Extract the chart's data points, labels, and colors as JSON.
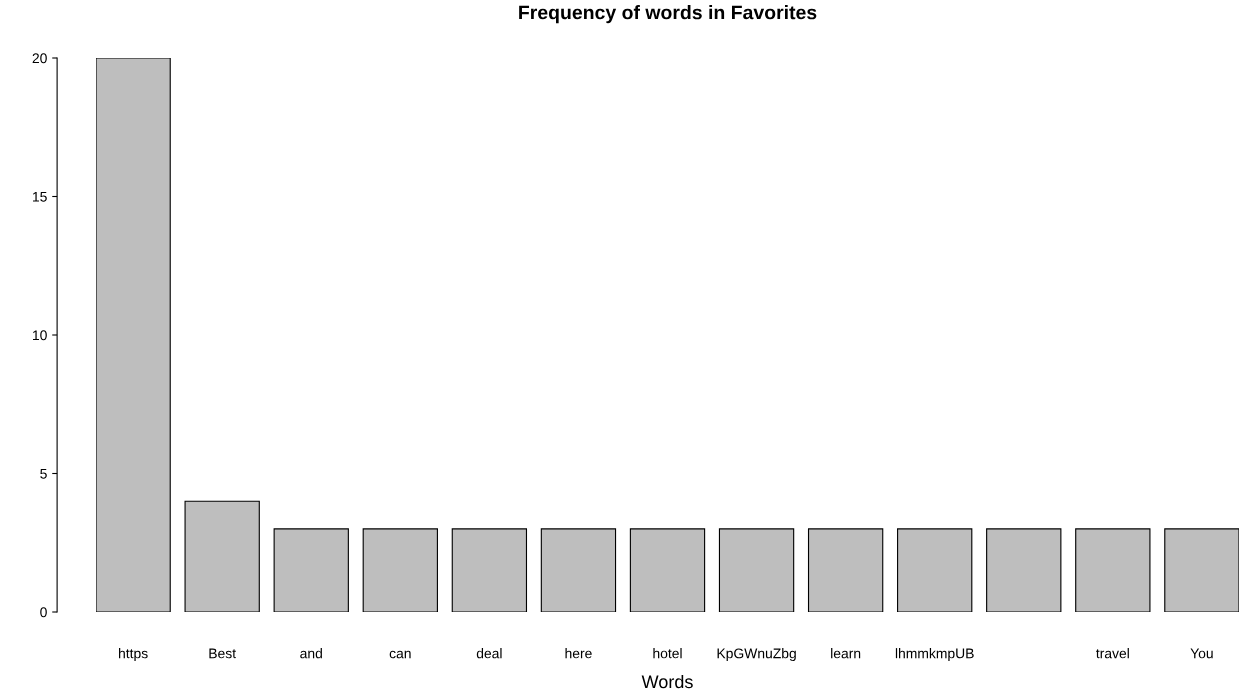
{
  "chart_data": {
    "type": "bar",
    "title": "Frequency of words in Favorites",
    "xlabel": "Words",
    "categories": [
      "https",
      "Best",
      "and",
      "can",
      "deal",
      "here",
      "hotel",
      "KpGWnuZbg",
      "learn",
      "lhmmkmpUB",
      null,
      "travel",
      "You"
    ],
    "values": [
      20,
      4,
      3,
      3,
      3,
      3,
      3,
      3,
      3,
      3,
      3,
      3,
      3
    ],
    "color": "#bebebe",
    "ylim": [
      0,
      20
    ],
    "yticks": [
      0,
      5,
      10,
      15,
      20
    ],
    "grid": false,
    "legend": false
  }
}
